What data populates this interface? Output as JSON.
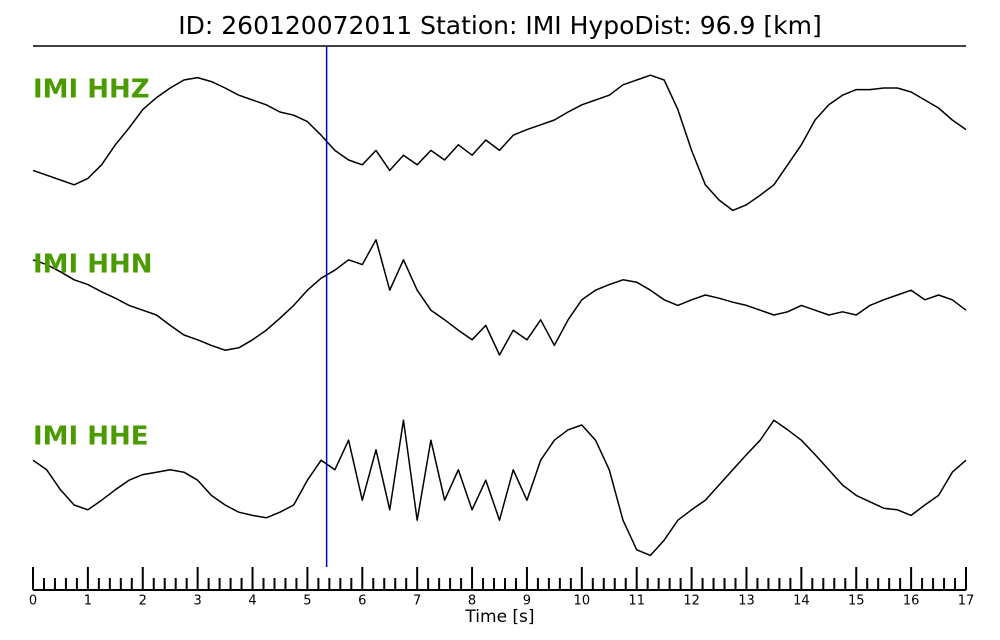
{
  "chart_data": {
    "type": "line",
    "title": "ID: 260120072011   Station: IMI   HypoDist:    96.9 [km]",
    "x_label": "Time [s]",
    "xlim": [
      0,
      17
    ],
    "xticks": [
      0,
      1,
      2,
      3,
      4,
      5,
      6,
      7,
      8,
      9,
      10,
      11,
      12,
      13,
      14,
      15,
      16,
      17
    ],
    "xminorticks": [
      0.2,
      0.4,
      0.6,
      0.8,
      1.2,
      1.4,
      1.6,
      1.8,
      2.2,
      2.4,
      2.6,
      2.8,
      3.2,
      3.4,
      3.6,
      3.8,
      4.2,
      4.4,
      4.6,
      4.8,
      5.2,
      5.4,
      5.6,
      5.8,
      6.2,
      6.4,
      6.6,
      6.8,
      7.2,
      7.4,
      7.6,
      7.8,
      8.2,
      8.4,
      8.6,
      8.8,
      9.2,
      9.4,
      9.6,
      9.8,
      10.2,
      10.4,
      10.6,
      10.8,
      11.2,
      11.4,
      11.6,
      11.8,
      12.2,
      12.4,
      12.6,
      12.8,
      13.2,
      13.4,
      13.6,
      13.8,
      14.2,
      14.4,
      14.6,
      14.8,
      15.2,
      15.4,
      15.6,
      15.8,
      16.2,
      16.4,
      16.6,
      16.8
    ],
    "ylim": [
      -1,
      1
    ],
    "label_color": "#4a9a00",
    "pick": {
      "x": 5.35,
      "color": "#0000cc"
    },
    "x": [
      0,
      0.25,
      0.5,
      0.75,
      1,
      1.25,
      1.5,
      1.75,
      2,
      2.25,
      2.5,
      2.75,
      3,
      3.25,
      3.5,
      3.75,
      4,
      4.25,
      4.5,
      4.75,
      5,
      5.25,
      5.5,
      5.75,
      6,
      6.25,
      6.5,
      6.75,
      7,
      7.25,
      7.5,
      7.75,
      8,
      8.25,
      8.5,
      8.75,
      9,
      9.25,
      9.5,
      9.75,
      10,
      10.25,
      10.5,
      10.75,
      11,
      11.25,
      11.5,
      11.75,
      12,
      12.25,
      12.5,
      12.75,
      13,
      13.25,
      13.5,
      13.75,
      14,
      14.25,
      14.5,
      14.75,
      15,
      15.25,
      15.5,
      15.75,
      16,
      16.25,
      16.5,
      16.75,
      17
    ],
    "series": [
      {
        "name": "IMI HHZ",
        "color": "#000000",
        "values": [
          -0.38,
          -0.44,
          -0.5,
          -0.56,
          -0.48,
          -0.31,
          -0.06,
          0.15,
          0.38,
          0.53,
          0.65,
          0.75,
          0.78,
          0.73,
          0.65,
          0.56,
          0.5,
          0.44,
          0.35,
          0.31,
          0.23,
          0.06,
          -0.13,
          -0.25,
          -0.31,
          -0.13,
          -0.38,
          -0.19,
          -0.31,
          -0.13,
          -0.25,
          -0.06,
          -0.19,
          0,
          -0.13,
          0.06,
          0.13,
          0.19,
          0.25,
          0.35,
          0.44,
          0.5,
          0.56,
          0.69,
          0.75,
          0.81,
          0.75,
          0.38,
          -0.13,
          -0.56,
          -0.75,
          -0.88,
          -0.81,
          -0.69,
          -0.56,
          -0.31,
          -0.06,
          0.25,
          0.44,
          0.56,
          0.63,
          0.63,
          0.65,
          0.65,
          0.6,
          0.5,
          0.4,
          0.25,
          0.13
        ]
      },
      {
        "name": "IMI HHN",
        "color": "#000000",
        "values": [
          0.44,
          0.38,
          0.29,
          0.19,
          0.13,
          0.04,
          -0.04,
          -0.13,
          -0.19,
          -0.25,
          -0.38,
          -0.5,
          -0.56,
          -0.63,
          -0.69,
          -0.66,
          -0.56,
          -0.44,
          -0.29,
          -0.13,
          0.06,
          0.21,
          0.31,
          0.44,
          0.38,
          0.69,
          0.06,
          0.44,
          0.06,
          -0.19,
          -0.31,
          -0.44,
          -0.56,
          -0.38,
          -0.75,
          -0.44,
          -0.56,
          -0.31,
          -0.63,
          -0.31,
          -0.06,
          0.06,
          0.13,
          0.19,
          0.16,
          0.06,
          -0.06,
          -0.13,
          -0.06,
          0,
          -0.04,
          -0.09,
          -0.13,
          -0.19,
          -0.25,
          -0.21,
          -0.13,
          -0.19,
          -0.25,
          -0.21,
          -0.25,
          -0.13,
          -0.06,
          0,
          0.06,
          -0.06,
          0,
          -0.06,
          -0.19
        ]
      },
      {
        "name": "IMI HHE",
        "color": "#000000",
        "values": [
          0.31,
          0.19,
          -0.06,
          -0.25,
          -0.31,
          -0.19,
          -0.06,
          0.06,
          0.13,
          0.16,
          0.19,
          0.16,
          0.06,
          -0.13,
          -0.25,
          -0.34,
          -0.38,
          -0.41,
          -0.34,
          -0.25,
          0.06,
          0.31,
          0.19,
          0.56,
          -0.19,
          0.44,
          -0.31,
          0.81,
          -0.44,
          0.56,
          -0.19,
          0.19,
          -0.31,
          0.06,
          -0.44,
          0.19,
          -0.19,
          0.31,
          0.56,
          0.69,
          0.75,
          0.56,
          0.19,
          -0.44,
          -0.81,
          -0.88,
          -0.69,
          -0.44,
          -0.31,
          -0.19,
          0,
          0.19,
          0.38,
          0.56,
          0.81,
          0.69,
          0.56,
          0.38,
          0.19,
          0,
          -0.13,
          -0.21,
          -0.29,
          -0.31,
          -0.38,
          -0.25,
          -0.13,
          0.16,
          0.31
        ]
      }
    ]
  }
}
